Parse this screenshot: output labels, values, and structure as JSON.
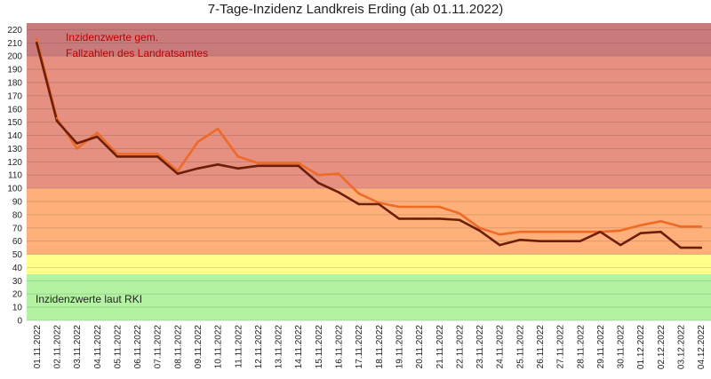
{
  "chart_data": {
    "type": "line",
    "title": "7-Tage-Inzidenz Landkreis Erding (ab 01.11.2022)",
    "xlabel": "",
    "ylabel": "",
    "ylim": [
      0,
      220
    ],
    "ytick_step": 10,
    "grid": true,
    "legend": "none",
    "categories": [
      "01.11.2022",
      "02.11.2022",
      "03.11.2022",
      "04.11.2022",
      "05.11.2022",
      "06.11.2022",
      "07.11.2022",
      "08.11.2022",
      "09.11.2022",
      "10.11.2022",
      "11.11.2022",
      "12.11.2022",
      "13.11.2022",
      "14.11.2022",
      "15.11.2022",
      "16.11.2022",
      "17.11.2022",
      "18.11.2022",
      "19.11.2022",
      "20.11.2022",
      "21.11.2022",
      "22.11.2022",
      "23.11.2022",
      "24.11.2022",
      "25.11.2022",
      "26.11.2022",
      "27.11.2022",
      "28.11.2022",
      "29.11.2022",
      "30.11.2022",
      "01.12.2022",
      "02.12.2022",
      "03.12.2022",
      "04.12.2022"
    ],
    "series": [
      {
        "color": "#ef6a24",
        "values": [
          213,
          153,
          130,
          142,
          126,
          126,
          126,
          113,
          135,
          145,
          124,
          119,
          119,
          119,
          110,
          111,
          96,
          89,
          86,
          86,
          86,
          81,
          70,
          65,
          67,
          67,
          67,
          67,
          67,
          68,
          72,
          75,
          71,
          71
        ]
      },
      {
        "color": "#6b1f08",
        "values": [
          210,
          151,
          134,
          139,
          124,
          124,
          124,
          111,
          115,
          118,
          115,
          117,
          117,
          117,
          104,
          97,
          88,
          88,
          77,
          77,
          77,
          76,
          68,
          57,
          61,
          60,
          60,
          60,
          67,
          57,
          66,
          67,
          55,
          55
        ]
      }
    ],
    "bands": [
      {
        "from": 0,
        "to": 35,
        "color": "#b3f2a0"
      },
      {
        "from": 35,
        "to": 50,
        "color": "#ffff8a"
      },
      {
        "from": 50,
        "to": 100,
        "color": "#ffb07a"
      },
      {
        "from": 100,
        "to": 200,
        "color": "#e59080"
      },
      {
        "from": 200,
        "to": 225,
        "color": "#c97b7b"
      }
    ],
    "annotations": [
      {
        "line1": "Inzidenzwerte gem.",
        "line2": "Fallzahlen des Landratsamtes",
        "color": "#c00000"
      },
      {
        "line1": "Inzidenzwerte laut RKI",
        "color": "#222222"
      }
    ]
  }
}
